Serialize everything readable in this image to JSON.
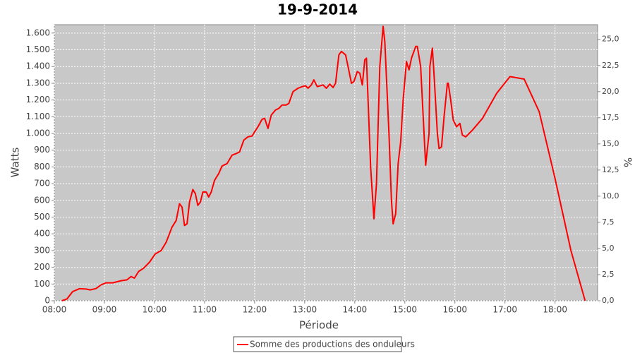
{
  "chart_data": {
    "type": "line",
    "title": "19-9-2014",
    "xlabel": "Période",
    "ylabel": "Watts",
    "y2label": "%",
    "x": [
      "08:09",
      "08:15",
      "08:22",
      "08:30",
      "08:38",
      "08:43",
      "08:50",
      "08:56",
      "09:02",
      "09:10",
      "09:20",
      "09:27",
      "09:32",
      "09:36",
      "09:41",
      "09:47",
      "09:54",
      "10:01",
      "10:08",
      "10:14",
      "10:21",
      "10:26",
      "10:30",
      "10:33",
      "10:36",
      "10:39",
      "10:42",
      "10:46",
      "10:49",
      "10:52",
      "10:55",
      "10:58",
      "11:02",
      "11:05",
      "11:08",
      "11:12",
      "11:17",
      "11:21",
      "11:27",
      "11:33",
      "11:38",
      "11:42",
      "11:47",
      "11:52",
      "11:57",
      "12:00",
      "12:04",
      "12:09",
      "12:12",
      "12:16",
      "12:20",
      "12:25",
      "12:29",
      "12:33",
      "12:38",
      "12:41",
      "12:46",
      "12:52",
      "12:57",
      "13:01",
      "13:04",
      "13:08",
      "13:11",
      "13:15",
      "13:22",
      "13:26",
      "13:30",
      "13:34",
      "13:37",
      "13:41",
      "13:44",
      "13:49",
      "13:52",
      "13:56",
      "13:59",
      "14:03",
      "14:06",
      "14:09",
      "14:12",
      "14:14",
      "14:19",
      "14:23",
      "14:26",
      "14:30",
      "14:34",
      "14:36",
      "14:41",
      "14:44",
      "14:46",
      "14:49",
      "14:52",
      "14:55",
      "14:58",
      "15:02",
      "15:05",
      "15:08",
      "15:13",
      "15:15",
      "15:19",
      "15:22",
      "15:25",
      "15:29",
      "15:30",
      "15:33",
      "15:35",
      "15:39",
      "15:41",
      "15:44",
      "15:47",
      "15:51",
      "15:52",
      "15:55",
      "15:58",
      "16:02",
      "16:06",
      "16:09",
      "16:13",
      "16:21",
      "16:33",
      "16:50",
      "17:06",
      "17:23",
      "17:41",
      "18:00",
      "18:19",
      "18:36"
    ],
    "series": [
      {
        "name": "Somme des productions des onduleurs",
        "color": "#ff0000",
        "values": [
          0,
          10,
          55,
          72,
          70,
          65,
          73,
          95,
          107,
          107,
          120,
          125,
          145,
          135,
          175,
          195,
          230,
          280,
          300,
          350,
          440,
          480,
          580,
          560,
          450,
          460,
          590,
          665,
          640,
          570,
          590,
          650,
          650,
          620,
          650,
          720,
          760,
          805,
          820,
          870,
          880,
          890,
          960,
          980,
          985,
          1010,
          1040,
          1085,
          1090,
          1030,
          1110,
          1140,
          1150,
          1170,
          1170,
          1180,
          1250,
          1270,
          1280,
          1285,
          1270,
          1290,
          1320,
          1280,
          1290,
          1270,
          1295,
          1275,
          1300,
          1470,
          1490,
          1470,
          1400,
          1300,
          1310,
          1370,
          1360,
          1290,
          1440,
          1450,
          800,
          490,
          700,
          1400,
          1640,
          1550,
          1000,
          600,
          460,
          520,
          820,
          950,
          1200,
          1430,
          1380,
          1450,
          1520,
          1520,
          1400,
          1100,
          810,
          1000,
          1400,
          1510,
          1350,
          1000,
          910,
          920,
          1100,
          1300,
          1300,
          1200,
          1080,
          1040,
          1060,
          990,
          980,
          1020,
          1090,
          1240,
          1340,
          1325,
          1130,
          730,
          300,
          0
        ]
      }
    ],
    "xlim": [
      "08:00",
      "18:51"
    ],
    "xticks": [
      "08:00",
      "09:00",
      "10:00",
      "11:00",
      "12:00",
      "13:00",
      "14:00",
      "15:00",
      "16:00",
      "17:00",
      "18:00"
    ],
    "ylim": [
      0,
      1650
    ],
    "yticks": [
      0,
      100,
      200,
      300,
      400,
      500,
      600,
      700,
      800,
      900,
      {
        "value": 1000,
        "label": "1.000"
      },
      {
        "value": 1100,
        "label": "1.100"
      },
      {
        "value": 1200,
        "label": "1.200"
      },
      {
        "value": 1300,
        "label": "1.300"
      },
      {
        "value": 1400,
        "label": "1.400"
      },
      {
        "value": 1500,
        "label": "1.500"
      },
      {
        "value": 1600,
        "label": "1.600"
      }
    ],
    "y2lim": [
      0,
      26.4
    ],
    "y2ticks": [
      {
        "value": 0,
        "label": "0,0"
      },
      {
        "value": 2.5,
        "label": "2,5"
      },
      {
        "value": 5,
        "label": "5,0"
      },
      {
        "value": 7.5,
        "label": "7,5"
      },
      {
        "value": 10,
        "label": "10,0"
      },
      {
        "value": 12.5,
        "label": "12,5"
      },
      {
        "value": 15,
        "label": "15,0"
      },
      {
        "value": 17.5,
        "label": "17,5"
      },
      {
        "value": 20,
        "label": "20,0"
      },
      {
        "value": 22.5,
        "label": "22,5"
      },
      {
        "value": 25,
        "label": "25,0"
      }
    ],
    "grid": true,
    "legend": "bottom"
  }
}
